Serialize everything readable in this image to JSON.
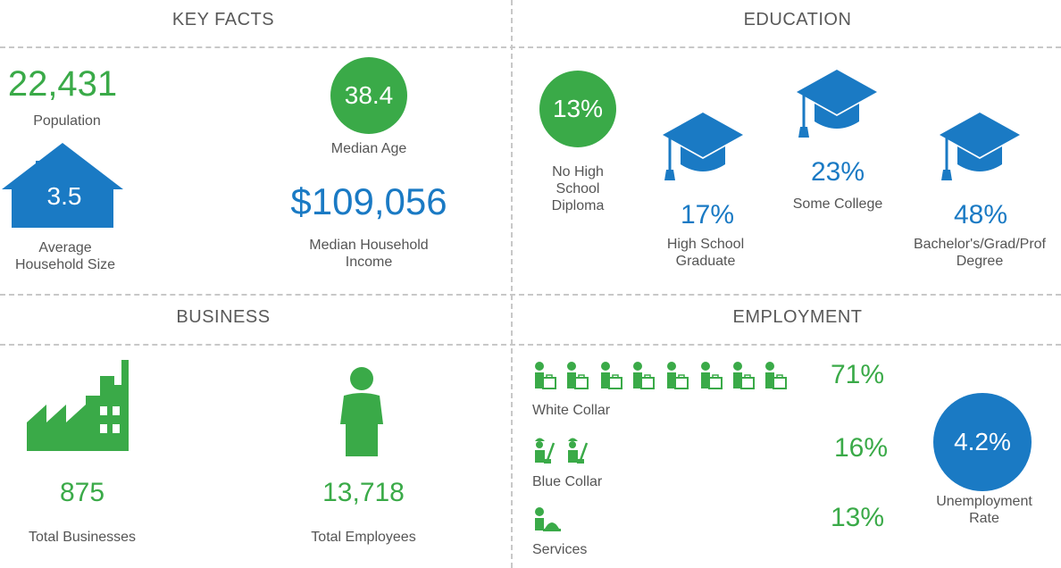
{
  "colors": {
    "green": "#3aaa48",
    "blue": "#1a7ac4",
    "text": "#555555",
    "divider": "#c8c8c8"
  },
  "key_facts": {
    "title": "KEY FACTS",
    "population": {
      "value": "22,431",
      "label": "Population"
    },
    "median_age": {
      "value": "38.4",
      "label": "Median Age"
    },
    "household_size": {
      "value": "3.5",
      "label_line1": "Average",
      "label_line2": "Household Size",
      "icon": "house-icon"
    },
    "household_income": {
      "value": "$109,056",
      "label_line1": "Median Household",
      "label_line2": "Income"
    }
  },
  "education": {
    "title": "EDUCATION",
    "no_high_school": {
      "value": "13%",
      "label_line1": "No High",
      "label_line2": "School",
      "label_line3": "Diploma"
    },
    "high_school": {
      "value": "17%",
      "label_line1": "High School",
      "label_line2": "Graduate",
      "icon": "graduation-cap-icon"
    },
    "some_college": {
      "value": "23%",
      "label": "Some College",
      "icon": "graduation-cap-icon"
    },
    "bachelors": {
      "value": "48%",
      "label_line1": "Bachelor's/Grad/Prof",
      "label_line2": "Degree",
      "icon": "graduation-cap-icon"
    }
  },
  "business": {
    "title": "BUSINESS",
    "total_businesses": {
      "value": "875",
      "label": "Total Businesses",
      "icon": "factory-icon"
    },
    "total_employees": {
      "value": "13,718",
      "label": "Total Employees",
      "icon": "person-icon"
    }
  },
  "employment": {
    "title": "EMPLOYMENT",
    "white_collar": {
      "value": "71%",
      "label": "White Collar",
      "icon": "office-worker-icon",
      "icon_count": 8
    },
    "blue_collar": {
      "value": "16%",
      "label": "Blue Collar",
      "icon": "laborer-icon",
      "icon_count": 2
    },
    "services": {
      "value": "13%",
      "label": "Services",
      "icon": "service-bell-icon",
      "icon_count": 1
    },
    "unemployment": {
      "value": "4.2%",
      "label_line1": "Unemployment",
      "label_line2": "Rate"
    }
  }
}
